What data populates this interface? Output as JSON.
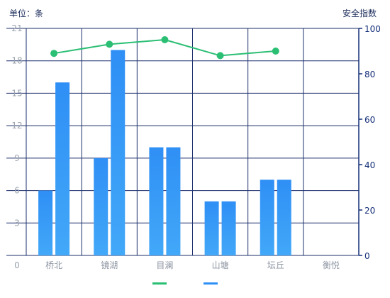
{
  "chart_data": {
    "type": "bar",
    "ylabel_left": "单位：条",
    "ylabel_right": "安全指数",
    "categories": [
      "桥北",
      "镜湖",
      "目澜",
      "山塘",
      "坛丘",
      "衡悦"
    ],
    "ylim_left": [
      0,
      21
    ],
    "yticks_left": [
      0,
      3,
      6,
      9,
      12,
      15,
      18,
      21
    ],
    "ylim_right": [
      0,
      100
    ],
    "yticks_right": [
      0,
      20,
      40,
      60,
      80,
      100
    ],
    "grid": true,
    "legend": "bottom-center",
    "series": [
      {
        "type": "bar",
        "axis": "left",
        "values": [
          6,
          9,
          10,
          5,
          7,
          null
        ]
      },
      {
        "type": "bar",
        "axis": "left",
        "values": [
          16,
          19,
          10,
          5,
          7,
          null
        ]
      },
      {
        "type": "line",
        "axis": "right",
        "values": [
          89,
          93,
          95,
          88,
          90,
          null
        ]
      }
    ],
    "colors": {
      "line": "#2bbf74",
      "bar_top": "#2f8ff5",
      "bar_bottom": "#42a8f8",
      "grid": "#1b2e6b",
      "axis_right": "#16307a",
      "tick_left": "#9aa3ae"
    }
  }
}
